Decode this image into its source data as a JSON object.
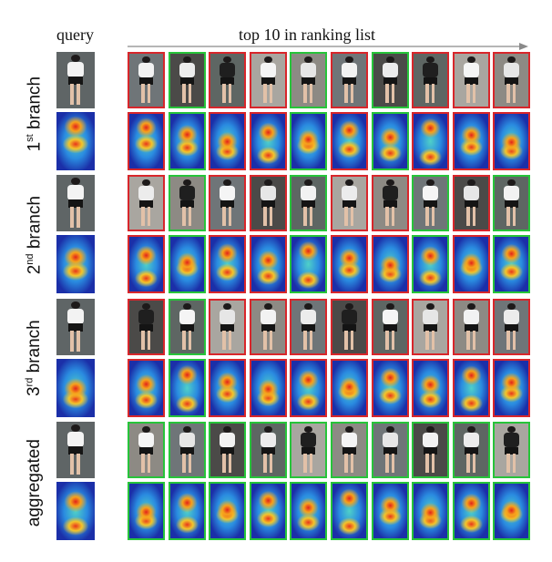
{
  "headers": {
    "query": "query",
    "ranking": "top 10 in ranking list"
  },
  "rows": [
    {
      "ordinal": "1",
      "suffix": "st",
      "word": " branch",
      "matches": [
        "red",
        "green",
        "red",
        "red",
        "green",
        "red",
        "green",
        "red",
        "red",
        "red"
      ]
    },
    {
      "ordinal": "2",
      "suffix": "nd",
      "word": " branch",
      "matches": [
        "red",
        "green",
        "red",
        "red",
        "green",
        "red",
        "red",
        "green",
        "red",
        "green"
      ]
    },
    {
      "ordinal": "3",
      "suffix": "rd",
      "word": " branch",
      "matches": [
        "red",
        "green",
        "red",
        "red",
        "red",
        "red",
        "red",
        "red",
        "red",
        "red"
      ]
    },
    {
      "ordinal": "",
      "suffix": "",
      "word": "aggregated",
      "matches": [
        "green",
        "green",
        "green",
        "green",
        "green",
        "green",
        "green",
        "green",
        "green",
        "green"
      ]
    }
  ],
  "colors": {
    "match": "#27c43a",
    "mismatch": "#d8262b"
  }
}
